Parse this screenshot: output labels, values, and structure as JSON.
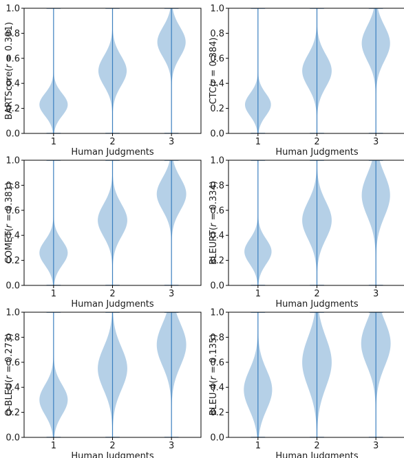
{
  "figure": {
    "layout": "3x2 grid of violin plots",
    "violin_fill": "#a8c8e3",
    "line_color": "#3b7fbf",
    "axis_color": "#000000"
  },
  "chart_data": [
    {
      "type": "violin",
      "ylabel_prefix": "BARTScore(",
      "ylabel_stat": "r",
      "ylabel_suffix": " = 0.391)",
      "xlabel": "Human Judgments",
      "categories": [
        "1",
        "2",
        "3"
      ],
      "ylim": [
        0,
        1
      ],
      "yticks": [
        "0.0",
        "0.2",
        "0.4",
        "0.6",
        "0.8",
        "1.0"
      ],
      "violins": [
        {
          "category": "1",
          "mode": 0.23,
          "spread": 0.09,
          "max_halfwidth": 0.24,
          "min": 0.0,
          "max": 1.0
        },
        {
          "category": "2",
          "mode": 0.5,
          "spread": 0.12,
          "max_halfwidth": 0.24,
          "min": 0.0,
          "max": 1.0
        },
        {
          "category": "3",
          "mode": 0.73,
          "spread": 0.12,
          "max_halfwidth": 0.24,
          "min": 0.0,
          "max": 1.0
        }
      ]
    },
    {
      "type": "violin",
      "ylabel_prefix": "CTC(",
      "ylabel_stat": "r",
      "ylabel_suffix": " = 0.384)",
      "xlabel": "Human Judgments",
      "categories": [
        "1",
        "2",
        "3"
      ],
      "ylim": [
        0,
        1
      ],
      "yticks": [
        "0.0",
        "0.2",
        "0.4",
        "0.6",
        "0.8",
        "1.0"
      ],
      "violins": [
        {
          "category": "1",
          "mode": 0.23,
          "spread": 0.09,
          "max_halfwidth": 0.22,
          "min": 0.0,
          "max": 1.0
        },
        {
          "category": "2",
          "mode": 0.5,
          "spread": 0.13,
          "max_halfwidth": 0.25,
          "min": 0.0,
          "max": 1.0
        },
        {
          "category": "3",
          "mode": 0.72,
          "spread": 0.14,
          "max_halfwidth": 0.24,
          "min": 0.0,
          "max": 1.0
        }
      ]
    },
    {
      "type": "violin",
      "ylabel_prefix": "COMET(",
      "ylabel_stat": "r",
      "ylabel_suffix": " = 0.381)",
      "xlabel": "Human Judgments",
      "categories": [
        "1",
        "2",
        "3"
      ],
      "ylim": [
        0,
        1
      ],
      "yticks": [
        "0.0",
        "0.2",
        "0.4",
        "0.6",
        "0.8",
        "1.0"
      ],
      "violins": [
        {
          "category": "1",
          "mode": 0.26,
          "spread": 0.1,
          "max_halfwidth": 0.24,
          "min": 0.0,
          "max": 1.0
        },
        {
          "category": "2",
          "mode": 0.52,
          "spread": 0.13,
          "max_halfwidth": 0.25,
          "min": 0.0,
          "max": 1.0
        },
        {
          "category": "3",
          "mode": 0.73,
          "spread": 0.13,
          "max_halfwidth": 0.25,
          "min": 0.0,
          "max": 1.0
        }
      ]
    },
    {
      "type": "violin",
      "ylabel_prefix": "BLEURT(",
      "ylabel_stat": "r",
      "ylabel_suffix": " = 0.334)",
      "xlabel": "Human Judgments",
      "categories": [
        "1",
        "2",
        "3"
      ],
      "ylim": [
        0,
        1
      ],
      "yticks": [
        "0.0",
        "0.2",
        "0.4",
        "0.6",
        "0.8",
        "1.0"
      ],
      "violins": [
        {
          "category": "1",
          "mode": 0.27,
          "spread": 0.1,
          "max_halfwidth": 0.23,
          "min": 0.0,
          "max": 1.0
        },
        {
          "category": "2",
          "mode": 0.52,
          "spread": 0.15,
          "max_halfwidth": 0.25,
          "min": 0.0,
          "max": 1.0
        },
        {
          "category": "3",
          "mode": 0.72,
          "spread": 0.17,
          "max_halfwidth": 0.24,
          "min": 0.0,
          "max": 1.0
        }
      ]
    },
    {
      "type": "violin",
      "ylabel_prefix": "Q-BLEU(",
      "ylabel_stat": "r",
      "ylabel_suffix": " = 0.273)",
      "xlabel": "Human Judgments",
      "categories": [
        "1",
        "2",
        "3"
      ],
      "ylim": [
        0,
        1
      ],
      "yticks": [
        "0.0",
        "0.2",
        "0.4",
        "0.6",
        "0.8",
        "1.0"
      ],
      "violins": [
        {
          "category": "1",
          "mode": 0.3,
          "spread": 0.12,
          "max_halfwidth": 0.24,
          "min": 0.0,
          "max": 1.0
        },
        {
          "category": "2",
          "mode": 0.55,
          "spread": 0.17,
          "max_halfwidth": 0.25,
          "min": 0.0,
          "max": 1.0
        },
        {
          "category": "3",
          "mode": 0.74,
          "spread": 0.17,
          "max_halfwidth": 0.25,
          "min": 0.0,
          "max": 1.0
        }
      ]
    },
    {
      "type": "violin",
      "ylabel_prefix": "BLEU-4(",
      "ylabel_stat": "r",
      "ylabel_suffix": " = 0.135)",
      "xlabel": "Human Judgments",
      "categories": [
        "1",
        "2",
        "3"
      ],
      "ylim": [
        0,
        1
      ],
      "yticks": [
        "0.0",
        "0.2",
        "0.4",
        "0.6",
        "0.8",
        "1.0"
      ],
      "violins": [
        {
          "category": "1",
          "mode": 0.38,
          "spread": 0.16,
          "max_halfwidth": 0.24,
          "min": 0.0,
          "max": 1.0
        },
        {
          "category": "2",
          "mode": 0.6,
          "spread": 0.2,
          "max_halfwidth": 0.25,
          "min": 0.0,
          "max": 1.0
        },
        {
          "category": "3",
          "mode": 0.75,
          "spread": 0.18,
          "max_halfwidth": 0.25,
          "min": 0.0,
          "max": 1.0
        }
      ]
    }
  ]
}
